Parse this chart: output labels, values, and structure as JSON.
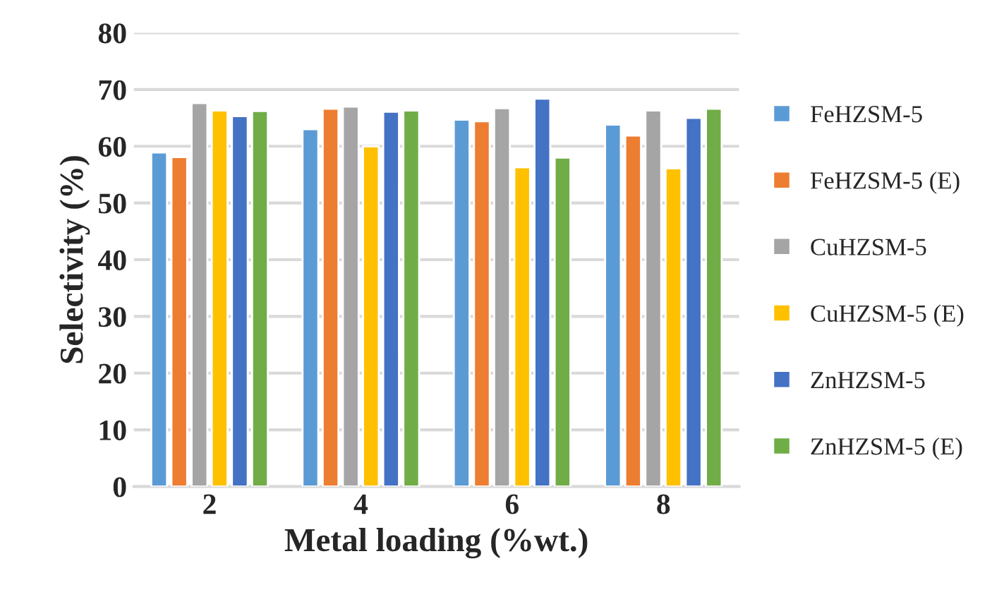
{
  "chart_data": {
    "type": "bar",
    "xlabel": "Metal loading (%wt.)",
    "ylabel": "Selectivity (%)",
    "categories": [
      "2",
      "4",
      "6",
      "8"
    ],
    "series": [
      {
        "name": "FeHZSM-5",
        "color": "#5b9bd5",
        "values": [
          58.9,
          63.0,
          64.7,
          63.8
        ]
      },
      {
        "name": "FeHZSM-5 (E)",
        "color": "#ed7d31",
        "values": [
          58.1,
          66.6,
          64.4,
          61.9
        ]
      },
      {
        "name": "CuHZSM-5",
        "color": "#a5a5a5",
        "values": [
          67.6,
          67.0,
          66.7,
          66.3
        ]
      },
      {
        "name": "CuHZSM-5 (E)",
        "color": "#ffc000",
        "values": [
          66.3,
          60.0,
          56.3,
          56.1
        ]
      },
      {
        "name": "ZnHZSM-5",
        "color": "#4472c4",
        "values": [
          65.3,
          66.1,
          68.4,
          65.0
        ]
      },
      {
        "name": "ZnHZSM-5 (E)",
        "color": "#70ad47",
        "values": [
          66.2,
          66.3,
          58.0,
          66.6
        ]
      }
    ],
    "ylim": [
      0,
      80
    ],
    "yticks": [
      0,
      10,
      20,
      30,
      40,
      50,
      60,
      70,
      80
    ],
    "grid": "y",
    "legend": "right"
  }
}
